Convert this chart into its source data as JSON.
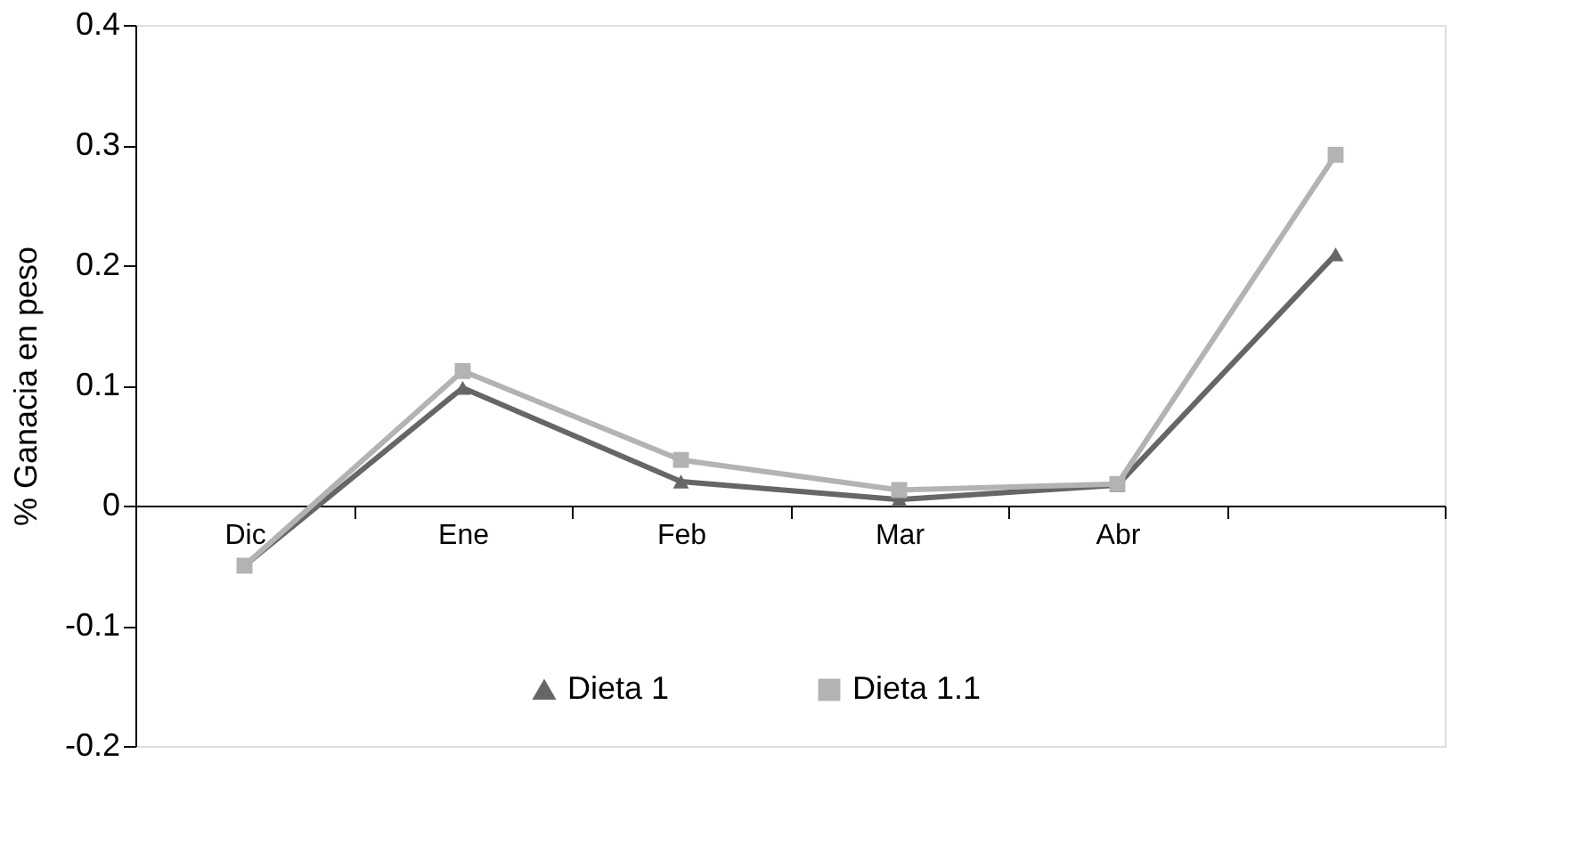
{
  "chart_data": {
    "type": "line",
    "ylabel": "% Ganacia en peso",
    "categories": [
      "Dic",
      "Ene",
      "Feb",
      "Mar",
      "Abr",
      null
    ],
    "series": [
      {
        "name": "Dieta 1",
        "color": "#666666",
        "marker": "triangle",
        "values": [
          -0.05,
          0.098,
          0.02,
          0.005,
          0.017,
          0.209
        ]
      },
      {
        "name": "Dieta 1.1",
        "color": "#b3b3b3",
        "marker": "square",
        "values": [
          -0.05,
          0.112,
          0.038,
          0.013,
          0.018,
          0.292
        ]
      }
    ],
    "ylim": [
      -0.2,
      0.4
    ],
    "yticks": [
      -0.2,
      -0.1,
      0,
      0.1,
      0.2,
      0.3,
      0.4
    ],
    "grid": false,
    "legend": "bottom",
    "line_style": "solid"
  }
}
